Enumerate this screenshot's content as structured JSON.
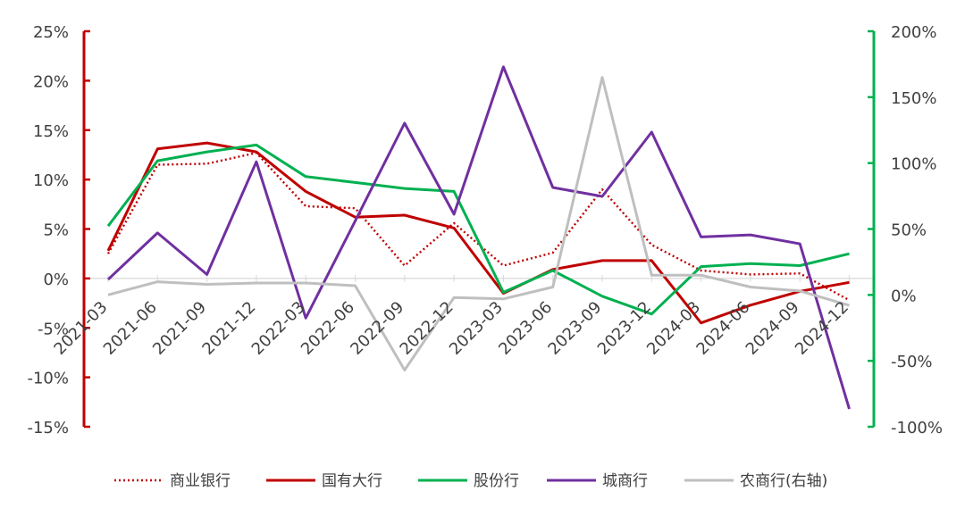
{
  "chart_data": {
    "type": "line",
    "categories": [
      "2021-03",
      "2021-06",
      "2021-09",
      "2021-12",
      "2022-03",
      "2022-06",
      "2022-09",
      "2022-12",
      "2023-03",
      "2023-06",
      "2023-09",
      "2023-12",
      "2024-03",
      "2024-06",
      "2024-09",
      "2024-12"
    ],
    "left_axis": {
      "ylim": [
        -15,
        25
      ],
      "ticks": [
        -15,
        -10,
        -5,
        0,
        5,
        10,
        15,
        20,
        25
      ],
      "tick_labels": [
        "-15%",
        "-10%",
        "-5%",
        "0%",
        "5%",
        "10%",
        "15%",
        "20%",
        "25%"
      ],
      "color": "#c00000"
    },
    "right_axis": {
      "ylim": [
        -100,
        200
      ],
      "ticks": [
        -100,
        -50,
        0,
        50,
        100,
        150,
        200
      ],
      "tick_labels": [
        "-100%",
        "-50%",
        "0%",
        "50%",
        "100%",
        "150%",
        "200%"
      ],
      "color": "#00b050"
    },
    "grid": false,
    "legend_position": "bottom",
    "series": [
      {
        "name": "商业银行",
        "axis": "left",
        "color": "#c00000",
        "style": "dotted",
        "values": [
          2.5,
          11.5,
          11.6,
          12.7,
          7.3,
          7.1,
          1.3,
          5.6,
          1.3,
          2.6,
          9.0,
          3.4,
          0.8,
          0.4,
          0.5,
          -2.2
        ]
      },
      {
        "name": "国有大行",
        "axis": "left",
        "color": "#c00000",
        "style": "solid",
        "values": [
          2.8,
          13.1,
          13.7,
          12.8,
          8.8,
          6.2,
          6.4,
          5.1,
          -1.5,
          0.9,
          1.8,
          1.8,
          -4.5,
          -2.7,
          -1.3,
          -0.4
        ]
      },
      {
        "name": "股份行",
        "axis": "left",
        "color": "#00b050",
        "style": "solid",
        "values": [
          5.3,
          11.9,
          12.8,
          13.5,
          10.3,
          9.7,
          9.1,
          8.8,
          -1.4,
          0.8,
          -1.8,
          -3.6,
          1.2,
          1.5,
          1.3,
          2.5
        ]
      },
      {
        "name": "城商行",
        "axis": "left",
        "color": "#7030a0",
        "style": "solid",
        "values": [
          -0.1,
          4.6,
          0.4,
          11.8,
          -4.0,
          5.8,
          15.7,
          6.5,
          21.4,
          9.2,
          8.3,
          14.8,
          4.2,
          4.4,
          3.5,
          -13.2
        ]
      },
      {
        "name": "农商行(右轴)",
        "axis": "right",
        "color": "#bfbfbf",
        "style": "solid",
        "values": [
          0,
          10,
          8,
          9,
          9,
          7,
          -57,
          -2,
          -3,
          6,
          165,
          15,
          15,
          6,
          3,
          -8
        ]
      }
    ]
  }
}
